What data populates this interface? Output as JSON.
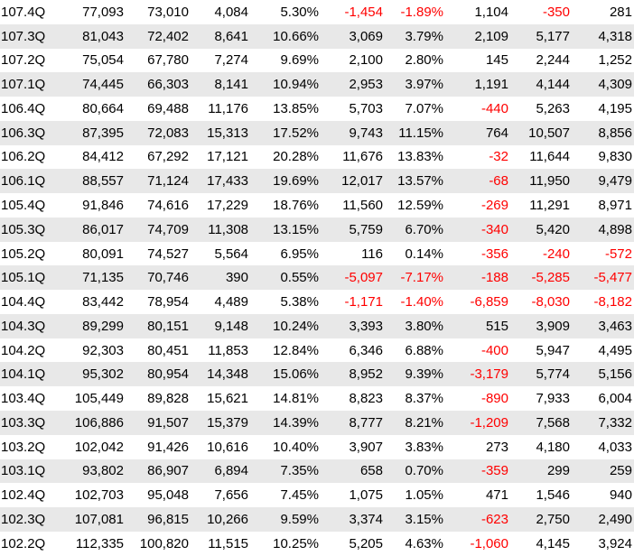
{
  "colors": {
    "row_shade": "#e8e8e8",
    "negative": "#ff0000",
    "text": "#000000"
  },
  "rows": [
    [
      "107.4Q",
      "77,093",
      "73,010",
      "4,084",
      "5.30%",
      "-1,454",
      "-1.89%",
      "1,104",
      "-350",
      "281"
    ],
    [
      "107.3Q",
      "81,043",
      "72,402",
      "8,641",
      "10.66%",
      "3,069",
      "3.79%",
      "2,109",
      "5,177",
      "4,318"
    ],
    [
      "107.2Q",
      "75,054",
      "67,780",
      "7,274",
      "9.69%",
      "2,100",
      "2.80%",
      "145",
      "2,244",
      "1,252"
    ],
    [
      "107.1Q",
      "74,445",
      "66,303",
      "8,141",
      "10.94%",
      "2,953",
      "3.97%",
      "1,191",
      "4,144",
      "4,309"
    ],
    [
      "106.4Q",
      "80,664",
      "69,488",
      "11,176",
      "13.85%",
      "5,703",
      "7.07%",
      "-440",
      "5,263",
      "4,195"
    ],
    [
      "106.3Q",
      "87,395",
      "72,083",
      "15,313",
      "17.52%",
      "9,743",
      "11.15%",
      "764",
      "10,507",
      "8,856"
    ],
    [
      "106.2Q",
      "84,412",
      "67,292",
      "17,121",
      "20.28%",
      "11,676",
      "13.83%",
      "-32",
      "11,644",
      "9,830"
    ],
    [
      "106.1Q",
      "88,557",
      "71,124",
      "17,433",
      "19.69%",
      "12,017",
      "13.57%",
      "-68",
      "11,950",
      "9,479"
    ],
    [
      "105.4Q",
      "91,846",
      "74,616",
      "17,229",
      "18.76%",
      "11,560",
      "12.59%",
      "-269",
      "11,291",
      "8,971"
    ],
    [
      "105.3Q",
      "86,017",
      "74,709",
      "11,308",
      "13.15%",
      "5,759",
      "6.70%",
      "-340",
      "5,420",
      "4,898"
    ],
    [
      "105.2Q",
      "80,091",
      "74,527",
      "5,564",
      "6.95%",
      "116",
      "0.14%",
      "-356",
      "-240",
      "-572"
    ],
    [
      "105.1Q",
      "71,135",
      "70,746",
      "390",
      "0.55%",
      "-5,097",
      "-7.17%",
      "-188",
      "-5,285",
      "-5,477"
    ],
    [
      "104.4Q",
      "83,442",
      "78,954",
      "4,489",
      "5.38%",
      "-1,171",
      "-1.40%",
      "-6,859",
      "-8,030",
      "-8,182"
    ],
    [
      "104.3Q",
      "89,299",
      "80,151",
      "9,148",
      "10.24%",
      "3,393",
      "3.80%",
      "515",
      "3,909",
      "3,463"
    ],
    [
      "104.2Q",
      "92,303",
      "80,451",
      "11,853",
      "12.84%",
      "6,346",
      "6.88%",
      "-400",
      "5,947",
      "4,495"
    ],
    [
      "104.1Q",
      "95,302",
      "80,954",
      "14,348",
      "15.06%",
      "8,952",
      "9.39%",
      "-3,179",
      "5,774",
      "5,156"
    ],
    [
      "103.4Q",
      "105,449",
      "89,828",
      "15,621",
      "14.81%",
      "8,823",
      "8.37%",
      "-890",
      "7,933",
      "6,004"
    ],
    [
      "103.3Q",
      "106,886",
      "91,507",
      "15,379",
      "14.39%",
      "8,777",
      "8.21%",
      "-1,209",
      "7,568",
      "7,332"
    ],
    [
      "103.2Q",
      "102,042",
      "91,426",
      "10,616",
      "10.40%",
      "3,907",
      "3.83%",
      "273",
      "4,180",
      "4,033"
    ],
    [
      "103.1Q",
      "93,802",
      "86,907",
      "6,894",
      "7.35%",
      "658",
      "0.70%",
      "-359",
      "299",
      "259"
    ],
    [
      "102.4Q",
      "102,703",
      "95,048",
      "7,656",
      "7.45%",
      "1,075",
      "1.05%",
      "471",
      "1,546",
      "940"
    ],
    [
      "102.3Q",
      "107,081",
      "96,815",
      "10,266",
      "9.59%",
      "3,374",
      "3.15%",
      "-623",
      "2,750",
      "2,490"
    ],
    [
      "102.2Q",
      "112,335",
      "100,820",
      "11,515",
      "10.25%",
      "5,205",
      "4.63%",
      "-1,060",
      "4,145",
      "3,924"
    ]
  ]
}
